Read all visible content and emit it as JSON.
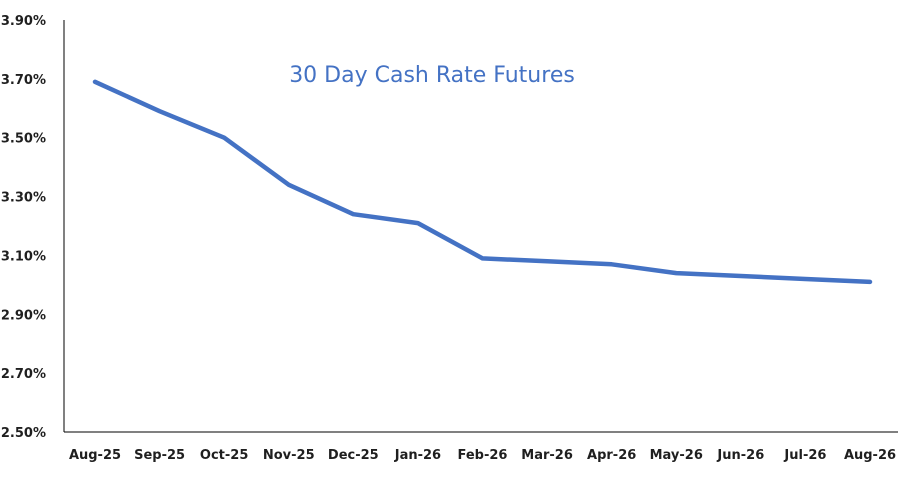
{
  "chart_data": {
    "type": "line",
    "title": "30 Day Cash Rate Futures",
    "xlabel": "",
    "ylabel": "",
    "categories": [
      "Aug-25",
      "Sep-25",
      "Oct-25",
      "Nov-25",
      "Dec-25",
      "Jan-26",
      "Feb-26",
      "Mar-26",
      "Apr-26",
      "May-26",
      "Jun-26",
      "Jul-26",
      "Aug-26"
    ],
    "series": [
      {
        "values": [
          3.69,
          3.59,
          3.5,
          3.34,
          3.24,
          3.21,
          3.09,
          3.08,
          3.07,
          3.04,
          3.03,
          3.02,
          3.01
        ],
        "color": "#4472c4"
      }
    ],
    "ylim": [
      2.5,
      3.9
    ],
    "yticks": [
      2.5,
      2.7,
      2.9,
      3.1,
      3.3,
      3.5,
      3.7,
      3.9
    ],
    "ytick_labels": [
      "2.50%",
      "2.70%",
      "2.90%",
      "3.10%",
      "3.30%",
      "3.50%",
      "3.70%",
      "3.90%"
    ],
    "grid": false,
    "legend": "none"
  }
}
